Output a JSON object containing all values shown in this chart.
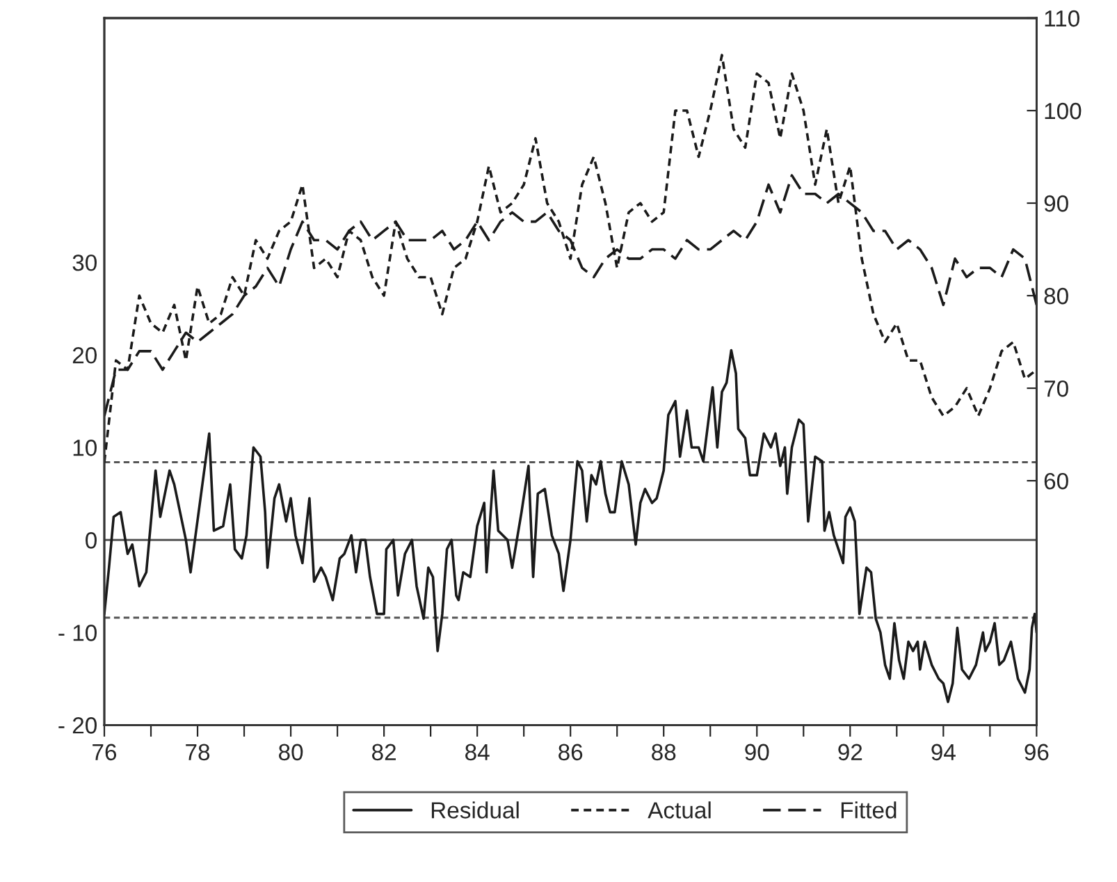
{
  "chart_data": {
    "type": "line",
    "xlim": [
      76,
      96
    ],
    "xticks": [
      76,
      {
        "value": 77,
        "label": null
      },
      78,
      {
        "value": 79,
        "label": null
      },
      80,
      {
        "value": 81,
        "label": null
      },
      82,
      {
        "value": 83,
        "label": null
      },
      84,
      {
        "value": 85,
        "label": null
      },
      86,
      {
        "value": 87,
        "label": null
      },
      88,
      {
        "value": 89,
        "label": null
      },
      90,
      {
        "value": 91,
        "label": null
      },
      92,
      {
        "value": 93,
        "label": null
      },
      94,
      {
        "value": 95,
        "label": null
      },
      96
    ],
    "ylim": [
      -20,
      56.4
    ],
    "yticks": [
      {
        "value": -20,
        "label": "- 20"
      },
      {
        "value": -10,
        "label": "- 10"
      },
      0,
      10,
      20,
      30
    ],
    "y2lim": [
      33.6,
      110
    ],
    "y2ticks": [
      60,
      70,
      80,
      90,
      100,
      110
    ],
    "grid": false,
    "legend": "bottom",
    "ref_lines": [
      {
        "axis": "y",
        "value": 0,
        "color": "#555555",
        "line_style": "solid"
      },
      {
        "axis": "y",
        "value": 8.4,
        "color": "#555555",
        "line_style": "dotted"
      },
      {
        "axis": "y",
        "value": -8.4,
        "color": "#555555",
        "line_style": "dotted"
      }
    ],
    "series": [
      {
        "name": "Residual",
        "color": "#1a1a1a",
        "line_style": "solid",
        "x": [
          76.0,
          76.1,
          76.2,
          76.35,
          76.5,
          76.6,
          76.75,
          76.9,
          77.1,
          77.2,
          77.4,
          77.5,
          77.75,
          77.85,
          78.05,
          78.25,
          78.35,
          78.55,
          78.7,
          78.8,
          78.95,
          79.05,
          79.2,
          79.35,
          79.45,
          79.5,
          79.65,
          79.75,
          79.9,
          80.0,
          80.1,
          80.25,
          80.4,
          80.5,
          80.65,
          80.75,
          80.9,
          81.05,
          81.15,
          81.3,
          81.4,
          81.5,
          81.6,
          81.7,
          81.85,
          82.0,
          82.05,
          82.2,
          82.3,
          82.45,
          82.6,
          82.7,
          82.85,
          82.95,
          83.05,
          83.15,
          83.25,
          83.35,
          83.45,
          83.55,
          83.6,
          83.7,
          83.85,
          84.0,
          84.15,
          84.2,
          84.35,
          84.45,
          84.65,
          84.75,
          84.95,
          85.1,
          85.2,
          85.3,
          85.45,
          85.6,
          85.75,
          85.85,
          86.0,
          86.15,
          86.25,
          86.35,
          86.45,
          86.55,
          86.65,
          86.75,
          86.85,
          86.95,
          87.1,
          87.25,
          87.4,
          87.5,
          87.6,
          87.75,
          87.85,
          88.0,
          88.1,
          88.25,
          88.35,
          88.5,
          88.6,
          88.75,
          88.85,
          89.05,
          89.15,
          89.25,
          89.35,
          89.45,
          89.55,
          89.6,
          89.75,
          89.85,
          90.0,
          90.15,
          90.3,
          90.4,
          90.5,
          90.6,
          90.65,
          90.75,
          90.9,
          91.0,
          91.1,
          91.25,
          91.4,
          91.45,
          91.55,
          91.65,
          91.75,
          91.85,
          91.9,
          92.0,
          92.1,
          92.2,
          92.35,
          92.45,
          92.55,
          92.65,
          92.75,
          92.85,
          92.95,
          93.05,
          93.15,
          93.25,
          93.35,
          93.45,
          93.5,
          93.6,
          93.75,
          93.9,
          94.0,
          94.1,
          94.2,
          94.3,
          94.4,
          94.55,
          94.7,
          94.85,
          94.9,
          95.0,
          95.1,
          95.2,
          95.3,
          95.45,
          95.6,
          95.75,
          95.85,
          95.9,
          95.96,
          96.0
        ],
        "values": [
          -8,
          -3,
          2.5,
          3,
          -1.5,
          -0.5,
          -5,
          -3.5,
          7.5,
          2.5,
          7.5,
          6,
          0,
          -3.5,
          4,
          11.5,
          1,
          1.5,
          6,
          -1,
          -2,
          0.5,
          10,
          9,
          3,
          -3,
          4.5,
          6,
          2,
          4.5,
          0.5,
          -2.5,
          4.5,
          -4.5,
          -3,
          -4,
          -6.5,
          -2,
          -1.5,
          0.5,
          -3.5,
          0,
          0,
          -4,
          -8,
          -8,
          -1,
          0,
          -6,
          -1.5,
          0,
          -5,
          -8.5,
          -3,
          -4,
          -12,
          -8,
          -1,
          0,
          -6,
          -6.5,
          -3.5,
          -4,
          1.5,
          4,
          -3.5,
          7.5,
          1,
          0,
          -3,
          3,
          8,
          -4,
          5,
          5.5,
          0.5,
          -1.5,
          -5.5,
          0,
          8.5,
          7.5,
          2,
          7,
          6,
          8.5,
          5,
          3,
          3,
          8.5,
          6,
          -0.5,
          4,
          5.5,
          4,
          4.5,
          7.5,
          13.5,
          15,
          9,
          14,
          10,
          10,
          8.5,
          16.5,
          10,
          16,
          17,
          20.5,
          18,
          12,
          11,
          7,
          7,
          11.5,
          10,
          11.5,
          8,
          10,
          5,
          10,
          13,
          12.5,
          2,
          9,
          8.5,
          1,
          3,
          0.5,
          -1,
          -2.5,
          2.5,
          3.5,
          2,
          -8,
          -3,
          -3.5,
          -8.5,
          -10,
          -13.5,
          -15,
          -9,
          -13,
          -15,
          -11,
          -12,
          -11,
          -14,
          -11,
          -13.5,
          -15,
          -15.5,
          -17.5,
          -15.5,
          -9.5,
          -14,
          -15,
          -13.5,
          -10,
          -12,
          -11,
          -9,
          -13.5,
          -13,
          -11,
          -15,
          -16.5,
          -14,
          -9.5,
          -8,
          -10
        ]
      },
      {
        "name": "Actual",
        "color": "#1a1a1a",
        "line_style": "dotted",
        "axis": "y2",
        "x": [
          76.0,
          76.25,
          76.5,
          76.75,
          77.0,
          77.25,
          77.5,
          77.75,
          78.0,
          78.25,
          78.5,
          78.75,
          79.0,
          79.25,
          79.5,
          79.75,
          80.0,
          80.25,
          80.5,
          80.75,
          81.0,
          81.25,
          81.5,
          81.75,
          82.0,
          82.25,
          82.5,
          82.75,
          83.0,
          83.25,
          83.5,
          83.75,
          84.0,
          84.25,
          84.5,
          84.75,
          85.0,
          85.25,
          85.5,
          85.75,
          86.0,
          86.25,
          86.5,
          86.75,
          87.0,
          87.25,
          87.5,
          87.75,
          88.0,
          88.25,
          88.5,
          88.75,
          89.0,
          89.25,
          89.5,
          89.75,
          90.0,
          90.25,
          90.5,
          90.75,
          91.0,
          91.25,
          91.5,
          91.75,
          92.0,
          92.25,
          92.5,
          92.75,
          93.0,
          93.25,
          93.5,
          93.75,
          94.0,
          94.25,
          94.5,
          94.75,
          95.0,
          95.25,
          95.5,
          95.75,
          96.0
        ],
        "values": [
          62,
          73,
          72,
          80,
          77,
          76,
          79,
          73,
          81,
          77,
          78,
          82,
          80,
          86,
          84,
          87,
          88,
          92,
          83,
          84,
          82,
          87,
          86,
          82,
          80,
          88,
          84,
          82,
          82,
          78,
          83,
          84,
          88,
          94,
          89,
          90,
          92,
          97,
          90,
          88,
          84,
          92,
          95,
          90,
          83,
          89,
          90,
          88,
          89,
          100,
          100,
          95,
          100,
          106,
          98,
          96,
          104,
          103,
          97,
          104,
          100,
          92,
          98,
          90,
          94,
          84,
          78,
          75,
          77,
          73,
          73,
          69,
          67,
          68,
          70,
          67,
          70,
          74,
          75,
          71,
          72
        ]
      },
      {
        "name": "Fitted",
        "color": "#1a1a1a",
        "line_style": "dashed",
        "axis": "y2",
        "x": [
          76.0,
          76.25,
          76.5,
          76.75,
          77.0,
          77.25,
          77.5,
          77.75,
          78.0,
          78.25,
          78.5,
          78.75,
          79.0,
          79.25,
          79.5,
          79.75,
          80.0,
          80.25,
          80.5,
          80.75,
          81.0,
          81.25,
          81.5,
          81.75,
          82.0,
          82.25,
          82.5,
          82.75,
          83.0,
          83.25,
          83.5,
          83.75,
          84.0,
          84.25,
          84.5,
          84.75,
          85.0,
          85.25,
          85.5,
          85.75,
          86.0,
          86.25,
          86.5,
          86.75,
          87.0,
          87.25,
          87.5,
          87.75,
          88.0,
          88.25,
          88.5,
          88.75,
          89.0,
          89.25,
          89.5,
          89.75,
          90.0,
          90.25,
          90.5,
          90.75,
          91.0,
          91.25,
          91.5,
          91.75,
          92.0,
          92.25,
          92.5,
          92.75,
          93.0,
          93.25,
          93.5,
          93.75,
          94.0,
          94.25,
          94.5,
          94.75,
          95.0,
          95.25,
          95.5,
          95.75,
          96.0
        ],
        "values": [
          67,
          72,
          72,
          74,
          74,
          72,
          74,
          76,
          75,
          76,
          77,
          78,
          80,
          81,
          83,
          81,
          85,
          88,
          86,
          86,
          85,
          87,
          88,
          86,
          87,
          88,
          86,
          86,
          86,
          87,
          85,
          86,
          88,
          86,
          88,
          89,
          88,
          88,
          89,
          87,
          86,
          83,
          82,
          84,
          85,
          84,
          84,
          85,
          85,
          84,
          86,
          85,
          85,
          86,
          87,
          86,
          88,
          92,
          89,
          93,
          91,
          91,
          90,
          91,
          90,
          89,
          87,
          87,
          85,
          86,
          85,
          83,
          79,
          84,
          82,
          83,
          83,
          82,
          85,
          84,
          79
        ]
      }
    ]
  }
}
